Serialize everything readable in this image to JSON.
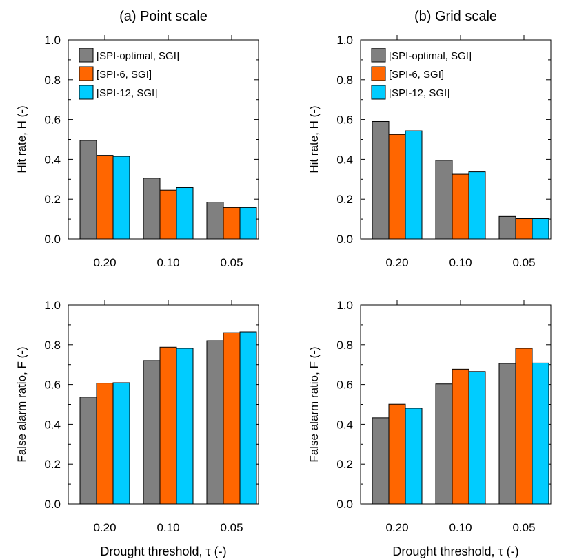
{
  "chart_data": [
    {
      "type": "bar",
      "title": "(a) Point scale",
      "xlabel": "",
      "ylabel": "Hit rate, H (-)",
      "categories": [
        "0.20",
        "0.10",
        "0.05"
      ],
      "ylim": [
        0,
        1
      ],
      "yticks": [
        "0.0",
        "0.2",
        "0.4",
        "0.6",
        "0.8",
        "1.0"
      ],
      "legend": "top-left",
      "series": [
        {
          "name": "[SPI-optimal, SGI]",
          "color": "#808080",
          "values": [
            0.495,
            0.305,
            0.185
          ]
        },
        {
          "name": "[SPI-6, SGI]",
          "color": "#ff6600",
          "values": [
            0.42,
            0.245,
            0.158
          ]
        },
        {
          "name": "[SPI-12, SGI]",
          "color": "#00ccff",
          "values": [
            0.415,
            0.258,
            0.158
          ]
        }
      ]
    },
    {
      "type": "bar",
      "title": "(b) Grid scale",
      "xlabel": "",
      "ylabel": "Hit rate, H (-)",
      "categories": [
        "0.20",
        "0.10",
        "0.05"
      ],
      "ylim": [
        0,
        1
      ],
      "yticks": [
        "0.0",
        "0.2",
        "0.4",
        "0.6",
        "0.8",
        "1.0"
      ],
      "legend": "top-left",
      "series": [
        {
          "name": "[SPI-optimal, SGI]",
          "color": "#808080",
          "values": [
            0.59,
            0.395,
            0.113
          ]
        },
        {
          "name": "[SPI-6, SGI]",
          "color": "#ff6600",
          "values": [
            0.525,
            0.325,
            0.102
          ]
        },
        {
          "name": "[SPI-12, SGI]",
          "color": "#00ccff",
          "values": [
            0.543,
            0.337,
            0.102
          ]
        }
      ]
    },
    {
      "type": "bar",
      "title": "",
      "xlabel": "Drought threshold, τ (-)",
      "ylabel": "False alarm ratio, F (-)",
      "categories": [
        "0.20",
        "0.10",
        "0.05"
      ],
      "ylim": [
        0,
        1
      ],
      "yticks": [
        "0.0",
        "0.2",
        "0.4",
        "0.6",
        "0.8",
        "1.0"
      ],
      "series": [
        {
          "name": "[SPI-optimal, SGI]",
          "color": "#808080",
          "values": [
            0.537,
            0.72,
            0.82
          ]
        },
        {
          "name": "[SPI-6, SGI]",
          "color": "#ff6600",
          "values": [
            0.607,
            0.788,
            0.861
          ]
        },
        {
          "name": "[SPI-12, SGI]",
          "color": "#00ccff",
          "values": [
            0.609,
            0.782,
            0.865
          ]
        }
      ]
    },
    {
      "type": "bar",
      "title": "",
      "xlabel": "Drought threshold, τ (-)",
      "ylabel": "False alarm ratio, F (-)",
      "categories": [
        "0.20",
        "0.10",
        "0.05"
      ],
      "ylim": [
        0,
        1
      ],
      "yticks": [
        "0.0",
        "0.2",
        "0.4",
        "0.6",
        "0.8",
        "1.0"
      ],
      "series": [
        {
          "name": "[SPI-optimal, SGI]",
          "color": "#808080",
          "values": [
            0.433,
            0.603,
            0.706
          ]
        },
        {
          "name": "[SPI-6, SGI]",
          "color": "#ff6600",
          "values": [
            0.501,
            0.677,
            0.782
          ]
        },
        {
          "name": "[SPI-12, SGI]",
          "color": "#00ccff",
          "values": [
            0.481,
            0.665,
            0.708
          ]
        }
      ]
    }
  ]
}
